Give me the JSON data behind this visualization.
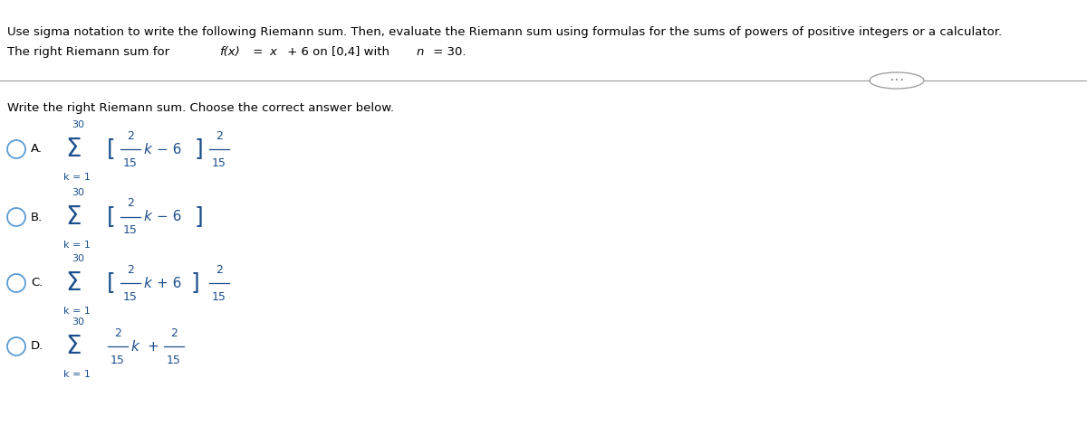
{
  "title_line1": "Use sigma notation to write the following Riemann sum. Then, evaluate the Riemann sum using formulas for the sums of powers of positive integers or a calculator.",
  "title_line2_plain": "The right Riemann sum for ",
  "title_line2_fx": "f(x)",
  "title_line2_eq": " = ",
  "title_line2_x": "x",
  "title_line2_rest": " + 6 on [0,4] with ",
  "title_line2_n": "n",
  "title_line2_end": " = 30.",
  "instruction": "Write the right Riemann sum. Choose the correct answer below.",
  "bg_color": "#ffffff",
  "text_color": "#000000",
  "blue_color": "#1a4e8c",
  "option_circle_color": "#5b9bd5",
  "fig_width": 12.0,
  "fig_height": 4.71
}
